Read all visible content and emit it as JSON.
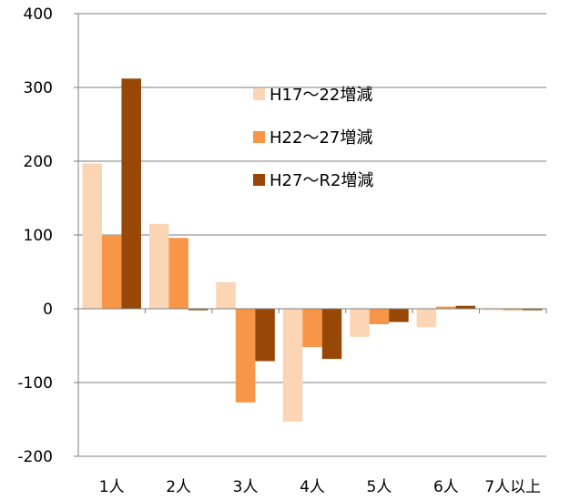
{
  "chart_data": {
    "type": "bar",
    "categories": [
      "1人",
      "2人",
      "3人",
      "4人",
      "5人",
      "6人",
      "7人以上"
    ],
    "series": [
      {
        "name": "H17～22増減",
        "values": [
          197,
          115,
          36,
          -153,
          -38,
          -25,
          -1
        ]
      },
      {
        "name": "H22～27増減",
        "values": [
          100,
          96,
          -127,
          -52,
          -21,
          3,
          -2
        ]
      },
      {
        "name": "H27～R2増減",
        "values": [
          312,
          -2,
          -71,
          -68,
          -18,
          4,
          -2
        ]
      }
    ],
    "colors": [
      "#fcd5b4",
      "#f79646",
      "#974706"
    ],
    "ylim": [
      -200,
      400
    ],
    "yticks": [
      400,
      300,
      200,
      100,
      0,
      -100,
      -200
    ],
    "ytick_labels": [
      "400",
      "300",
      "200",
      "100",
      "0",
      "-100",
      "-200"
    ],
    "grid": true,
    "legend_position": "upper-center-right",
    "title": "",
    "xlabel": "",
    "ylabel": ""
  }
}
